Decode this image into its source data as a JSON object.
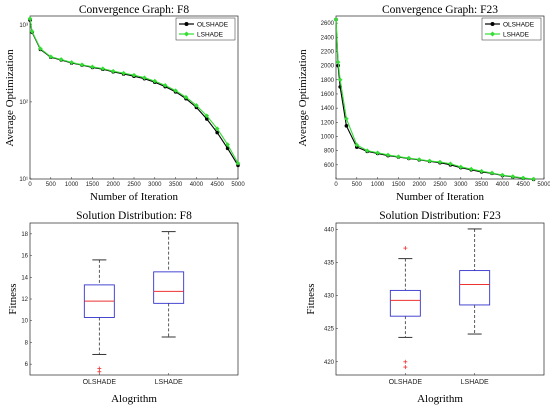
{
  "chart_data": [
    {
      "type": "line",
      "title": "Convergence Graph: F8",
      "xlabel": "Number of Iteration",
      "ylabel": "Average Optimization",
      "xlim": [
        0,
        5000
      ],
      "xticks": [
        0,
        500,
        1000,
        1500,
        2000,
        2500,
        3000,
        3500,
        4000,
        4500,
        5000
      ],
      "y_scale": "log",
      "ylim": [
        10,
        1300
      ],
      "yticks": [
        10,
        100,
        1000
      ],
      "ytick_labels": [
        "10¹",
        "10²",
        "10³"
      ],
      "legend_position": "top-right",
      "series": [
        {
          "name": "OLSHADE",
          "color": "#000000",
          "marker": "circle",
          "x": [
            0,
            50,
            250,
            500,
            750,
            1000,
            1250,
            1500,
            1750,
            2000,
            2250,
            2500,
            2750,
            3000,
            3250,
            3500,
            3750,
            4000,
            4250,
            4500,
            4750,
            5000
          ],
          "y": [
            1150,
            800,
            480,
            380,
            350,
            320,
            300,
            280,
            265,
            245,
            230,
            215,
            200,
            180,
            158,
            135,
            110,
            85,
            60,
            40,
            25,
            15
          ]
        },
        {
          "name": "LSHADE",
          "color": "#33dd33",
          "marker": "diamond",
          "x": [
            0,
            50,
            250,
            500,
            750,
            1000,
            1250,
            1500,
            1750,
            2000,
            2250,
            2500,
            2750,
            3000,
            3250,
            3500,
            3750,
            4000,
            4250,
            4500,
            4750,
            5000
          ],
          "y": [
            1200,
            820,
            490,
            385,
            355,
            325,
            303,
            285,
            270,
            250,
            236,
            222,
            206,
            186,
            164,
            140,
            115,
            90,
            66,
            45,
            28,
            16
          ]
        }
      ]
    },
    {
      "type": "line",
      "title": "Convergence Graph: F23",
      "xlabel": "Number of Iteration",
      "ylabel": "Average Optimization",
      "xlim": [
        0,
        5000
      ],
      "xticks": [
        0,
        500,
        1000,
        1500,
        2000,
        2500,
        3000,
        3500,
        4000,
        4500,
        5000
      ],
      "ylim": [
        400,
        2700
      ],
      "yticks": [
        600,
        800,
        1000,
        1200,
        1400,
        1600,
        1800,
        2000,
        2200,
        2400,
        2600
      ],
      "legend_position": "top-right",
      "series": [
        {
          "name": "OLSHADE",
          "color": "#000000",
          "marker": "circle",
          "x": [
            0,
            50,
            100,
            250,
            500,
            750,
            1000,
            1250,
            1500,
            1750,
            2000,
            2250,
            2500,
            2750,
            3000,
            3250,
            3500,
            3750,
            4000,
            4250,
            4500,
            4750
          ],
          "y": [
            2650,
            2000,
            1700,
            1150,
            850,
            790,
            760,
            730,
            710,
            690,
            670,
            650,
            630,
            600,
            560,
            530,
            500,
            480,
            450,
            430,
            410,
            395
          ]
        },
        {
          "name": "LSHADE",
          "color": "#33dd33",
          "marker": "diamond",
          "x": [
            0,
            50,
            100,
            250,
            500,
            750,
            1000,
            1250,
            1500,
            1750,
            2000,
            2250,
            2500,
            2750,
            3000,
            3250,
            3500,
            3750,
            4000,
            4250,
            4500,
            4750
          ],
          "y": [
            2650,
            2050,
            1800,
            1250,
            880,
            800,
            770,
            740,
            715,
            695,
            675,
            655,
            640,
            615,
            570,
            540,
            510,
            485,
            455,
            435,
            415,
            400
          ]
        }
      ]
    },
    {
      "type": "box",
      "title": "Solution Distribution: F8",
      "xlabel": "Alogrithm",
      "ylabel": "Fitness",
      "ylim": [
        5,
        19
      ],
      "yticks": [
        6,
        8,
        10,
        12,
        14,
        16,
        18
      ],
      "categories": [
        "OLSHADE",
        "LSHADE"
      ],
      "boxes": [
        {
          "q1": 10.3,
          "median": 11.8,
          "q3": 13.3,
          "whisker_low": 6.9,
          "whisker_high": 15.6,
          "outliers": [
            5.3,
            5.6
          ]
        },
        {
          "q1": 11.6,
          "median": 12.7,
          "q3": 14.5,
          "whisker_low": 8.5,
          "whisker_high": 18.2,
          "outliers": []
        }
      ]
    },
    {
      "type": "box",
      "title": "Solution Distribution: F23",
      "xlabel": "Alogrithm",
      "ylabel": "Fitness",
      "ylim": [
        418,
        441
      ],
      "yticks": [
        420,
        425,
        430,
        435,
        440
      ],
      "categories": [
        "OLSHADE",
        "LSHADE"
      ],
      "boxes": [
        {
          "q1": 426.9,
          "median": 429.3,
          "q3": 430.8,
          "whisker_low": 423.7,
          "whisker_high": 435.6,
          "outliers": [
            437.2,
            419.2,
            420.0
          ]
        },
        {
          "q1": 428.6,
          "median": 431.7,
          "q3": 433.8,
          "whisker_low": 424.2,
          "whisker_high": 440.1,
          "outliers": []
        }
      ]
    }
  ]
}
